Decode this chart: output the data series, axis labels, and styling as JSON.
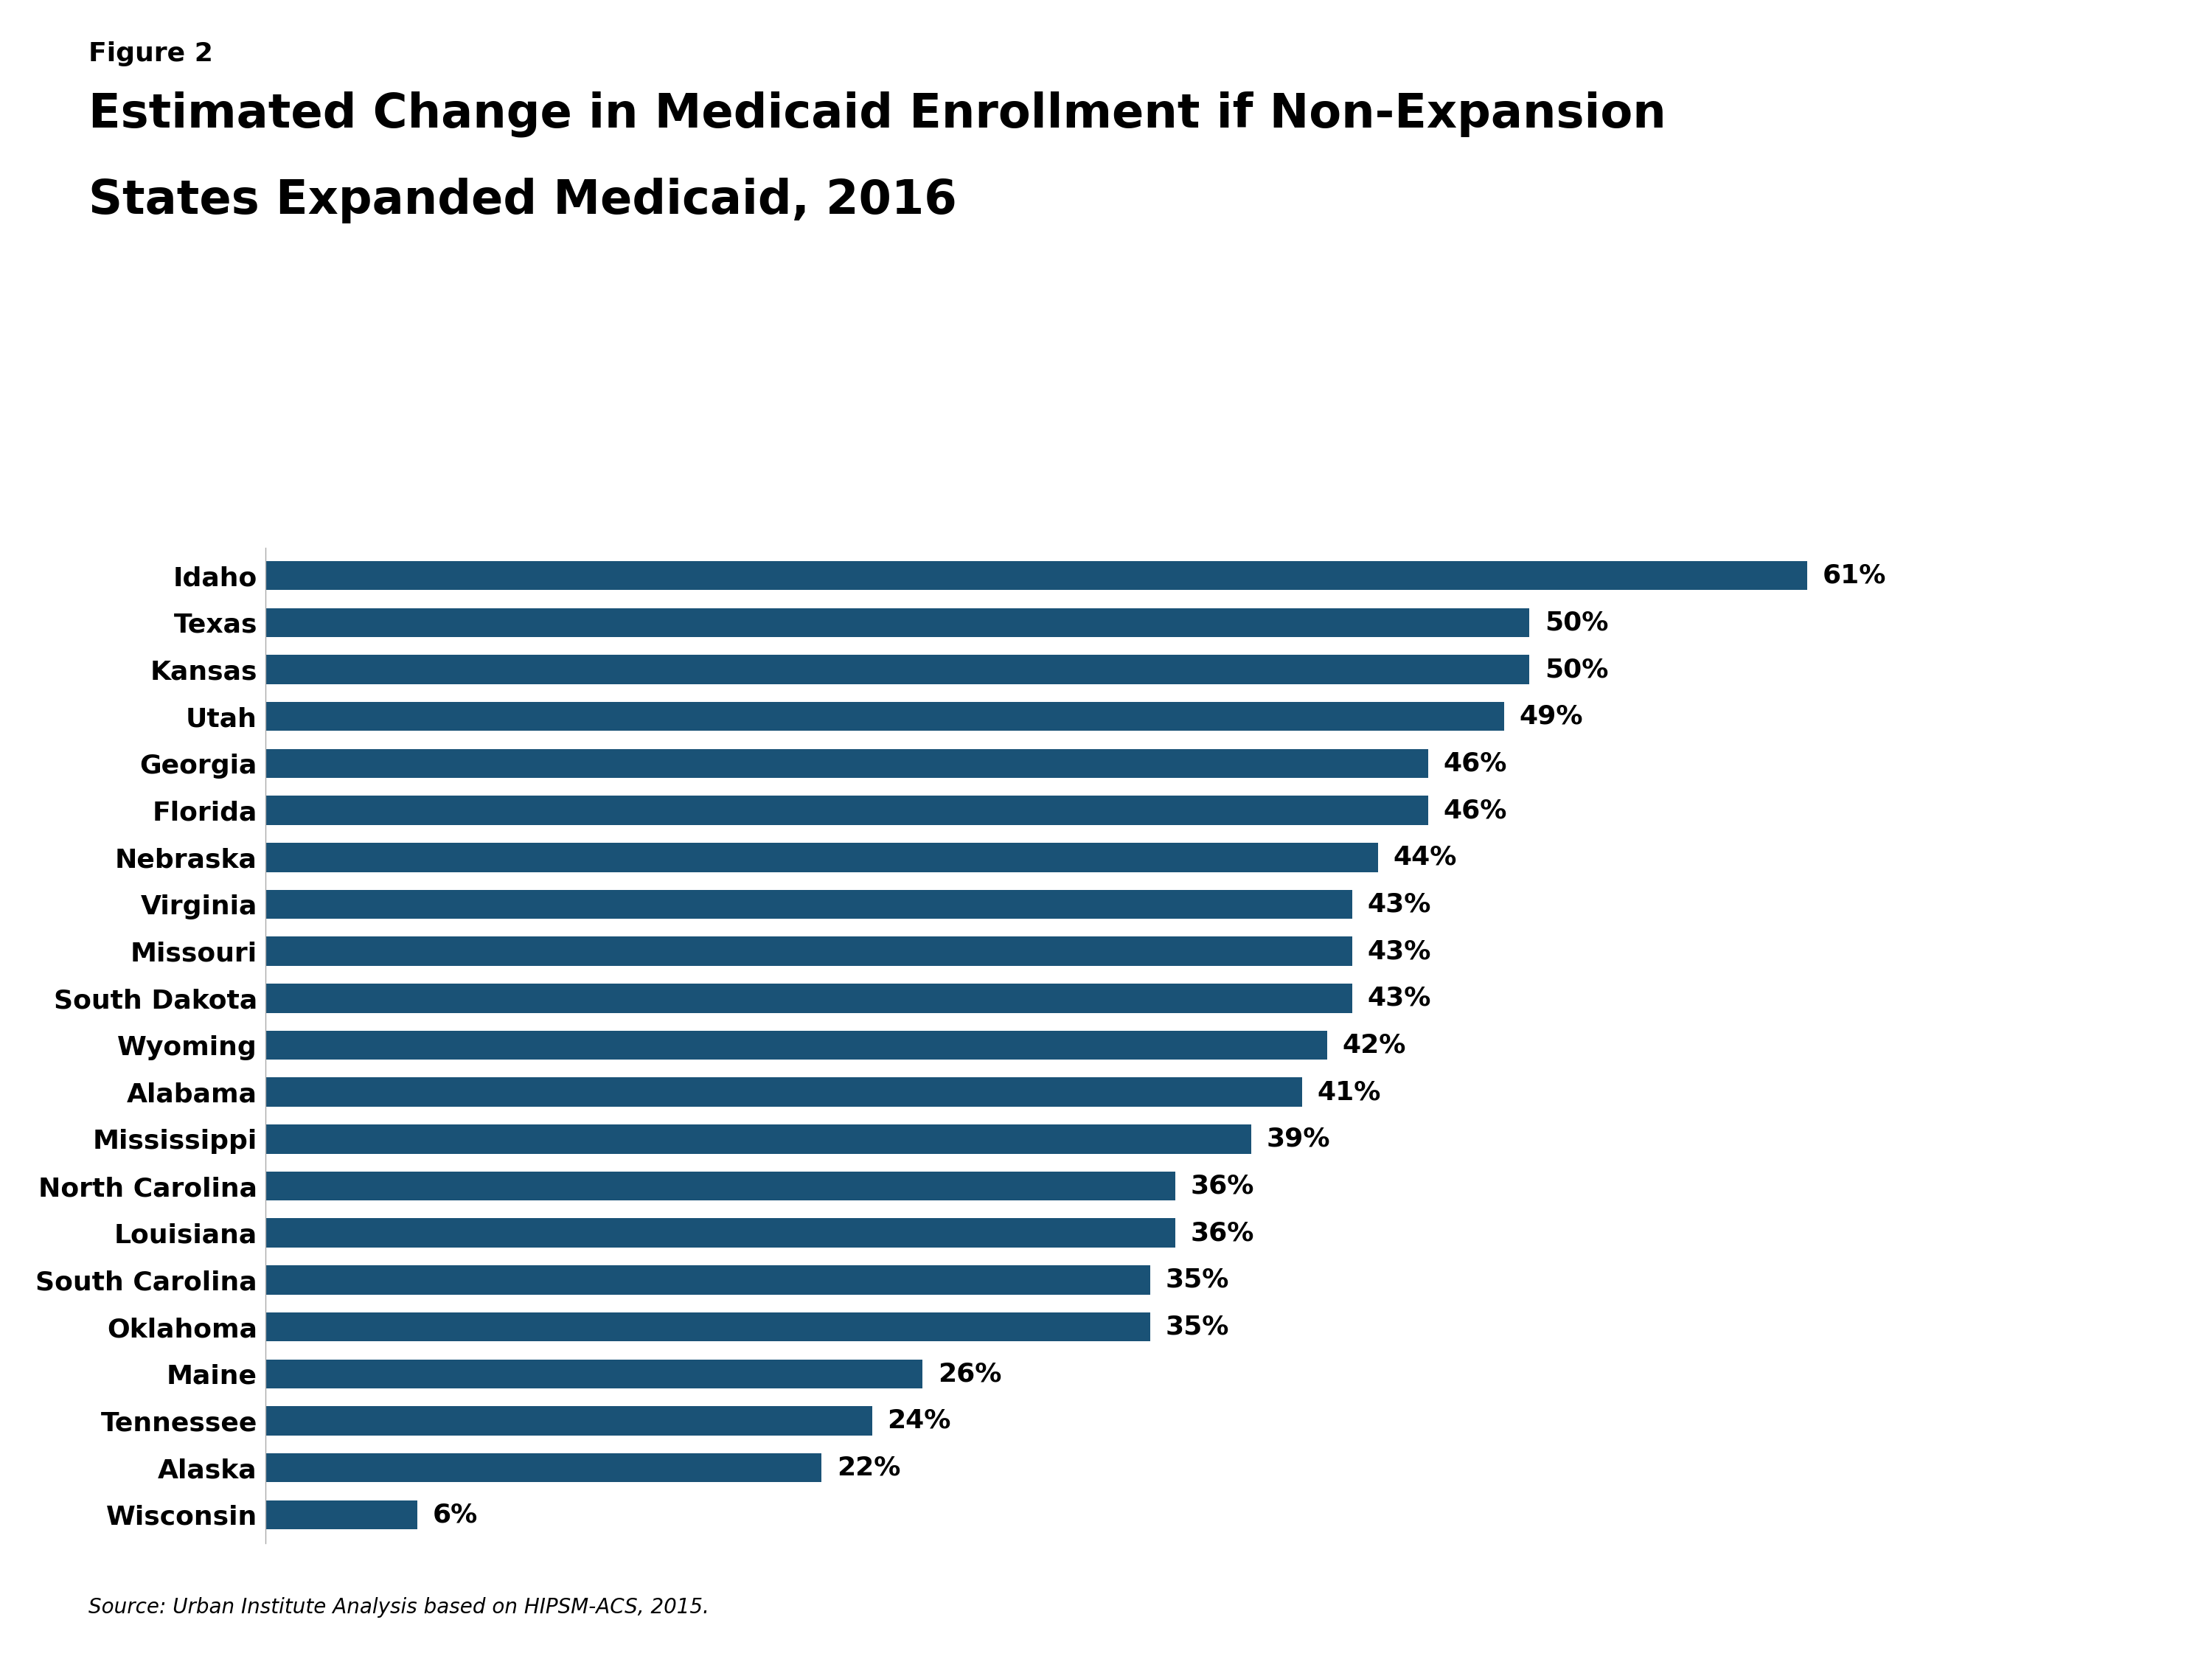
{
  "figure_label": "Figure 2",
  "title_line1": "Estimated Change in Medicaid Enrollment if Non-Expansion",
  "title_line2": "States Expanded Medicaid, 2016",
  "states": [
    "Idaho",
    "Texas",
    "Kansas",
    "Utah",
    "Georgia",
    "Florida",
    "Nebraska",
    "Virginia",
    "Missouri",
    "South Dakota",
    "Wyoming",
    "Alabama",
    "Mississippi",
    "North Carolina",
    "Louisiana",
    "South Carolina",
    "Oklahoma",
    "Maine",
    "Tennessee",
    "Alaska",
    "Wisconsin"
  ],
  "values": [
    61,
    50,
    50,
    49,
    46,
    46,
    44,
    43,
    43,
    43,
    42,
    41,
    39,
    36,
    36,
    35,
    35,
    26,
    24,
    22,
    6
  ],
  "bar_color": "#1A5276",
  "background_color": "#FFFFFF",
  "source_text": "Source: Urban Institute Analysis based on HIPSM-ACS, 2015.",
  "xlim_max": 70,
  "title_fontsize": 46,
  "figure_label_fontsize": 26,
  "bar_label_fontsize": 26,
  "ytick_fontsize": 26,
  "source_fontsize": 20,
  "logo_bg_color": "#1A5276",
  "logo_text_color": "#FFFFFF"
}
